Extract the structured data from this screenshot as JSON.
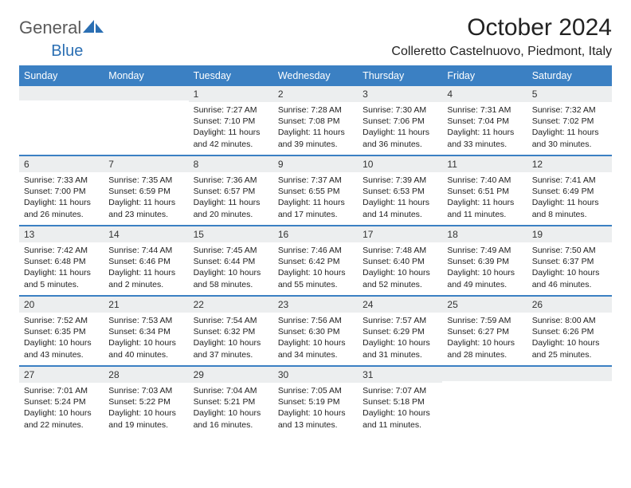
{
  "brand": {
    "name_part1": "General",
    "name_part2": "Blue"
  },
  "title": "October 2024",
  "location": "Colleretto Castelnuovo, Piedmont, Italy",
  "colors": {
    "header_bg": "#3b80c3",
    "header_text": "#ffffff",
    "daynum_bg": "#eceeef",
    "row_border": "#3b80c3",
    "body_text": "#222222",
    "logo_gray": "#5a5a5a",
    "logo_blue": "#2b6fb3"
  },
  "day_headers": [
    "Sunday",
    "Monday",
    "Tuesday",
    "Wednesday",
    "Thursday",
    "Friday",
    "Saturday"
  ],
  "weeks": [
    [
      {
        "n": "",
        "sr": "",
        "ss": "",
        "dl1": "",
        "dl2": ""
      },
      {
        "n": "",
        "sr": "",
        "ss": "",
        "dl1": "",
        "dl2": ""
      },
      {
        "n": "1",
        "sr": "Sunrise: 7:27 AM",
        "ss": "Sunset: 7:10 PM",
        "dl1": "Daylight: 11 hours",
        "dl2": "and 42 minutes."
      },
      {
        "n": "2",
        "sr": "Sunrise: 7:28 AM",
        "ss": "Sunset: 7:08 PM",
        "dl1": "Daylight: 11 hours",
        "dl2": "and 39 minutes."
      },
      {
        "n": "3",
        "sr": "Sunrise: 7:30 AM",
        "ss": "Sunset: 7:06 PM",
        "dl1": "Daylight: 11 hours",
        "dl2": "and 36 minutes."
      },
      {
        "n": "4",
        "sr": "Sunrise: 7:31 AM",
        "ss": "Sunset: 7:04 PM",
        "dl1": "Daylight: 11 hours",
        "dl2": "and 33 minutes."
      },
      {
        "n": "5",
        "sr": "Sunrise: 7:32 AM",
        "ss": "Sunset: 7:02 PM",
        "dl1": "Daylight: 11 hours",
        "dl2": "and 30 minutes."
      }
    ],
    [
      {
        "n": "6",
        "sr": "Sunrise: 7:33 AM",
        "ss": "Sunset: 7:00 PM",
        "dl1": "Daylight: 11 hours",
        "dl2": "and 26 minutes."
      },
      {
        "n": "7",
        "sr": "Sunrise: 7:35 AM",
        "ss": "Sunset: 6:59 PM",
        "dl1": "Daylight: 11 hours",
        "dl2": "and 23 minutes."
      },
      {
        "n": "8",
        "sr": "Sunrise: 7:36 AM",
        "ss": "Sunset: 6:57 PM",
        "dl1": "Daylight: 11 hours",
        "dl2": "and 20 minutes."
      },
      {
        "n": "9",
        "sr": "Sunrise: 7:37 AM",
        "ss": "Sunset: 6:55 PM",
        "dl1": "Daylight: 11 hours",
        "dl2": "and 17 minutes."
      },
      {
        "n": "10",
        "sr": "Sunrise: 7:39 AM",
        "ss": "Sunset: 6:53 PM",
        "dl1": "Daylight: 11 hours",
        "dl2": "and 14 minutes."
      },
      {
        "n": "11",
        "sr": "Sunrise: 7:40 AM",
        "ss": "Sunset: 6:51 PM",
        "dl1": "Daylight: 11 hours",
        "dl2": "and 11 minutes."
      },
      {
        "n": "12",
        "sr": "Sunrise: 7:41 AM",
        "ss": "Sunset: 6:49 PM",
        "dl1": "Daylight: 11 hours",
        "dl2": "and 8 minutes."
      }
    ],
    [
      {
        "n": "13",
        "sr": "Sunrise: 7:42 AM",
        "ss": "Sunset: 6:48 PM",
        "dl1": "Daylight: 11 hours",
        "dl2": "and 5 minutes."
      },
      {
        "n": "14",
        "sr": "Sunrise: 7:44 AM",
        "ss": "Sunset: 6:46 PM",
        "dl1": "Daylight: 11 hours",
        "dl2": "and 2 minutes."
      },
      {
        "n": "15",
        "sr": "Sunrise: 7:45 AM",
        "ss": "Sunset: 6:44 PM",
        "dl1": "Daylight: 10 hours",
        "dl2": "and 58 minutes."
      },
      {
        "n": "16",
        "sr": "Sunrise: 7:46 AM",
        "ss": "Sunset: 6:42 PM",
        "dl1": "Daylight: 10 hours",
        "dl2": "and 55 minutes."
      },
      {
        "n": "17",
        "sr": "Sunrise: 7:48 AM",
        "ss": "Sunset: 6:40 PM",
        "dl1": "Daylight: 10 hours",
        "dl2": "and 52 minutes."
      },
      {
        "n": "18",
        "sr": "Sunrise: 7:49 AM",
        "ss": "Sunset: 6:39 PM",
        "dl1": "Daylight: 10 hours",
        "dl2": "and 49 minutes."
      },
      {
        "n": "19",
        "sr": "Sunrise: 7:50 AM",
        "ss": "Sunset: 6:37 PM",
        "dl1": "Daylight: 10 hours",
        "dl2": "and 46 minutes."
      }
    ],
    [
      {
        "n": "20",
        "sr": "Sunrise: 7:52 AM",
        "ss": "Sunset: 6:35 PM",
        "dl1": "Daylight: 10 hours",
        "dl2": "and 43 minutes."
      },
      {
        "n": "21",
        "sr": "Sunrise: 7:53 AM",
        "ss": "Sunset: 6:34 PM",
        "dl1": "Daylight: 10 hours",
        "dl2": "and 40 minutes."
      },
      {
        "n": "22",
        "sr": "Sunrise: 7:54 AM",
        "ss": "Sunset: 6:32 PM",
        "dl1": "Daylight: 10 hours",
        "dl2": "and 37 minutes."
      },
      {
        "n": "23",
        "sr": "Sunrise: 7:56 AM",
        "ss": "Sunset: 6:30 PM",
        "dl1": "Daylight: 10 hours",
        "dl2": "and 34 minutes."
      },
      {
        "n": "24",
        "sr": "Sunrise: 7:57 AM",
        "ss": "Sunset: 6:29 PM",
        "dl1": "Daylight: 10 hours",
        "dl2": "and 31 minutes."
      },
      {
        "n": "25",
        "sr": "Sunrise: 7:59 AM",
        "ss": "Sunset: 6:27 PM",
        "dl1": "Daylight: 10 hours",
        "dl2": "and 28 minutes."
      },
      {
        "n": "26",
        "sr": "Sunrise: 8:00 AM",
        "ss": "Sunset: 6:26 PM",
        "dl1": "Daylight: 10 hours",
        "dl2": "and 25 minutes."
      }
    ],
    [
      {
        "n": "27",
        "sr": "Sunrise: 7:01 AM",
        "ss": "Sunset: 5:24 PM",
        "dl1": "Daylight: 10 hours",
        "dl2": "and 22 minutes."
      },
      {
        "n": "28",
        "sr": "Sunrise: 7:03 AM",
        "ss": "Sunset: 5:22 PM",
        "dl1": "Daylight: 10 hours",
        "dl2": "and 19 minutes."
      },
      {
        "n": "29",
        "sr": "Sunrise: 7:04 AM",
        "ss": "Sunset: 5:21 PM",
        "dl1": "Daylight: 10 hours",
        "dl2": "and 16 minutes."
      },
      {
        "n": "30",
        "sr": "Sunrise: 7:05 AM",
        "ss": "Sunset: 5:19 PM",
        "dl1": "Daylight: 10 hours",
        "dl2": "and 13 minutes."
      },
      {
        "n": "31",
        "sr": "Sunrise: 7:07 AM",
        "ss": "Sunset: 5:18 PM",
        "dl1": "Daylight: 10 hours",
        "dl2": "and 11 minutes."
      },
      {
        "n": "",
        "sr": "",
        "ss": "",
        "dl1": "",
        "dl2": ""
      },
      {
        "n": "",
        "sr": "",
        "ss": "",
        "dl1": "",
        "dl2": ""
      }
    ]
  ]
}
